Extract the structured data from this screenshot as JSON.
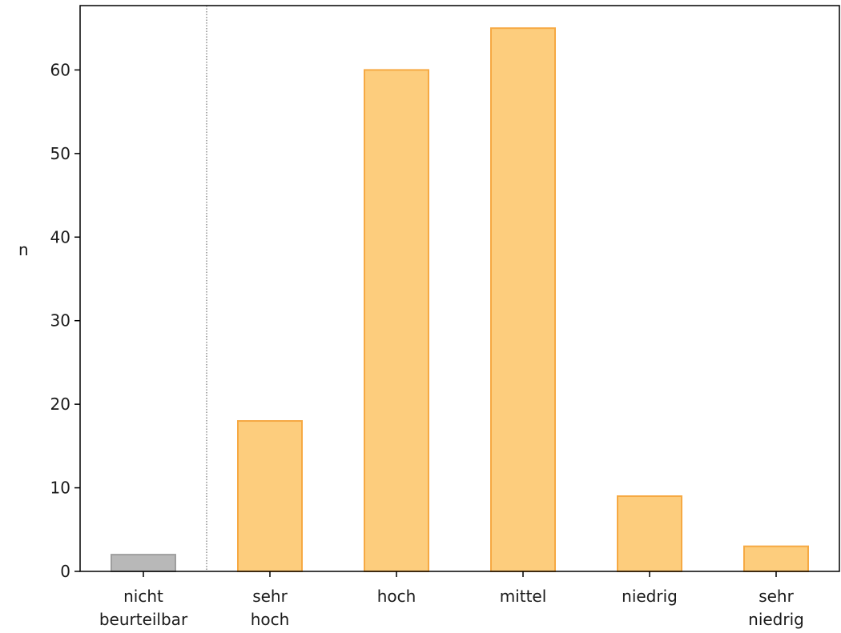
{
  "chart_data": {
    "type": "bar",
    "title": "",
    "xlabel": "",
    "ylabel": "n",
    "ylim": [
      0,
      67.7
    ],
    "yticks": [
      0,
      10,
      20,
      30,
      40,
      50,
      60
    ],
    "categories": [
      [
        "nicht",
        "beurteilbar"
      ],
      [
        "sehr",
        "hoch"
      ],
      [
        "hoch"
      ],
      [
        "mittel"
      ],
      [
        "niedrig"
      ],
      [
        "sehr",
        "niedrig"
      ]
    ],
    "values": [
      2,
      18,
      60,
      65,
      9,
      3
    ],
    "bar_colors": {
      "nicht_beurteilbar_fill": "#b8b8b8",
      "nicht_beurteilbar_edge": "#9e9e9e",
      "rating_fill": "#fdcd7d",
      "rating_edge": "#f6a943"
    },
    "separator_after_index": 0,
    "grid": false
  }
}
